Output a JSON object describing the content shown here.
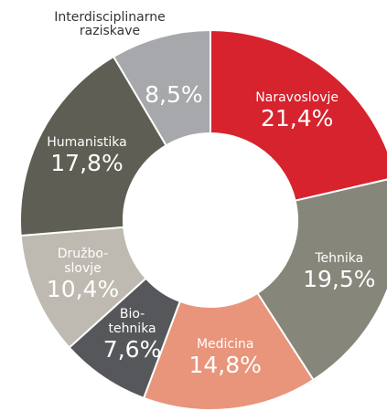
{
  "chart_data": {
    "type": "donut",
    "categories": [
      "Naravoslovje",
      "Tehnika",
      "Medicina",
      "Bio-\ntehnika",
      "Družbo-\nslovje",
      "Humanistika",
      "Interdisciplinarne\nraziskave"
    ],
    "values": [
      21.4,
      19.5,
      14.8,
      7.6,
      10.4,
      17.8,
      8.5
    ],
    "value_labels": [
      "21,4%",
      "19,5%",
      "14,8%",
      "7,6%",
      "10,4%",
      "17,8%",
      "8,5%"
    ],
    "colors": [
      "#d7232e",
      "#86867a",
      "#e8957b",
      "#56575a",
      "#bebab1",
      "#5e5e54",
      "#a7a8ac"
    ]
  }
}
